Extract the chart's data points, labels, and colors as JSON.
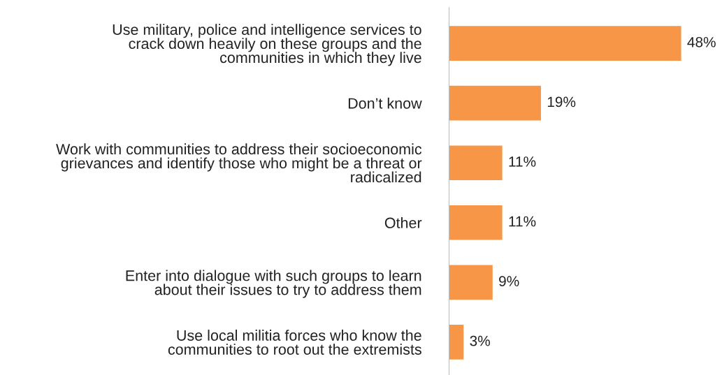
{
  "chart_data": {
    "type": "bar",
    "orientation": "horizontal",
    "categories": [
      "Use military, police and intelligence services to\ncrack down heavily on these groups and the\ncommunities in which they live",
      "Don’t know",
      "Work with communities to address their socioeconomic\ngrievances and identify those who might be a threat or\nradicalized",
      "Other",
      "Enter into dialogue with such groups to learn\nabout their issues to try to address them",
      "Use local militia forces who know the\ncommunities to root out the extremists"
    ],
    "values": [
      48,
      19,
      11,
      11,
      9,
      3
    ],
    "value_labels": [
      "48%",
      "19%",
      "11%",
      "11%",
      "9%",
      "3%"
    ],
    "color": "#f79646",
    "grid": false,
    "legend": false
  }
}
